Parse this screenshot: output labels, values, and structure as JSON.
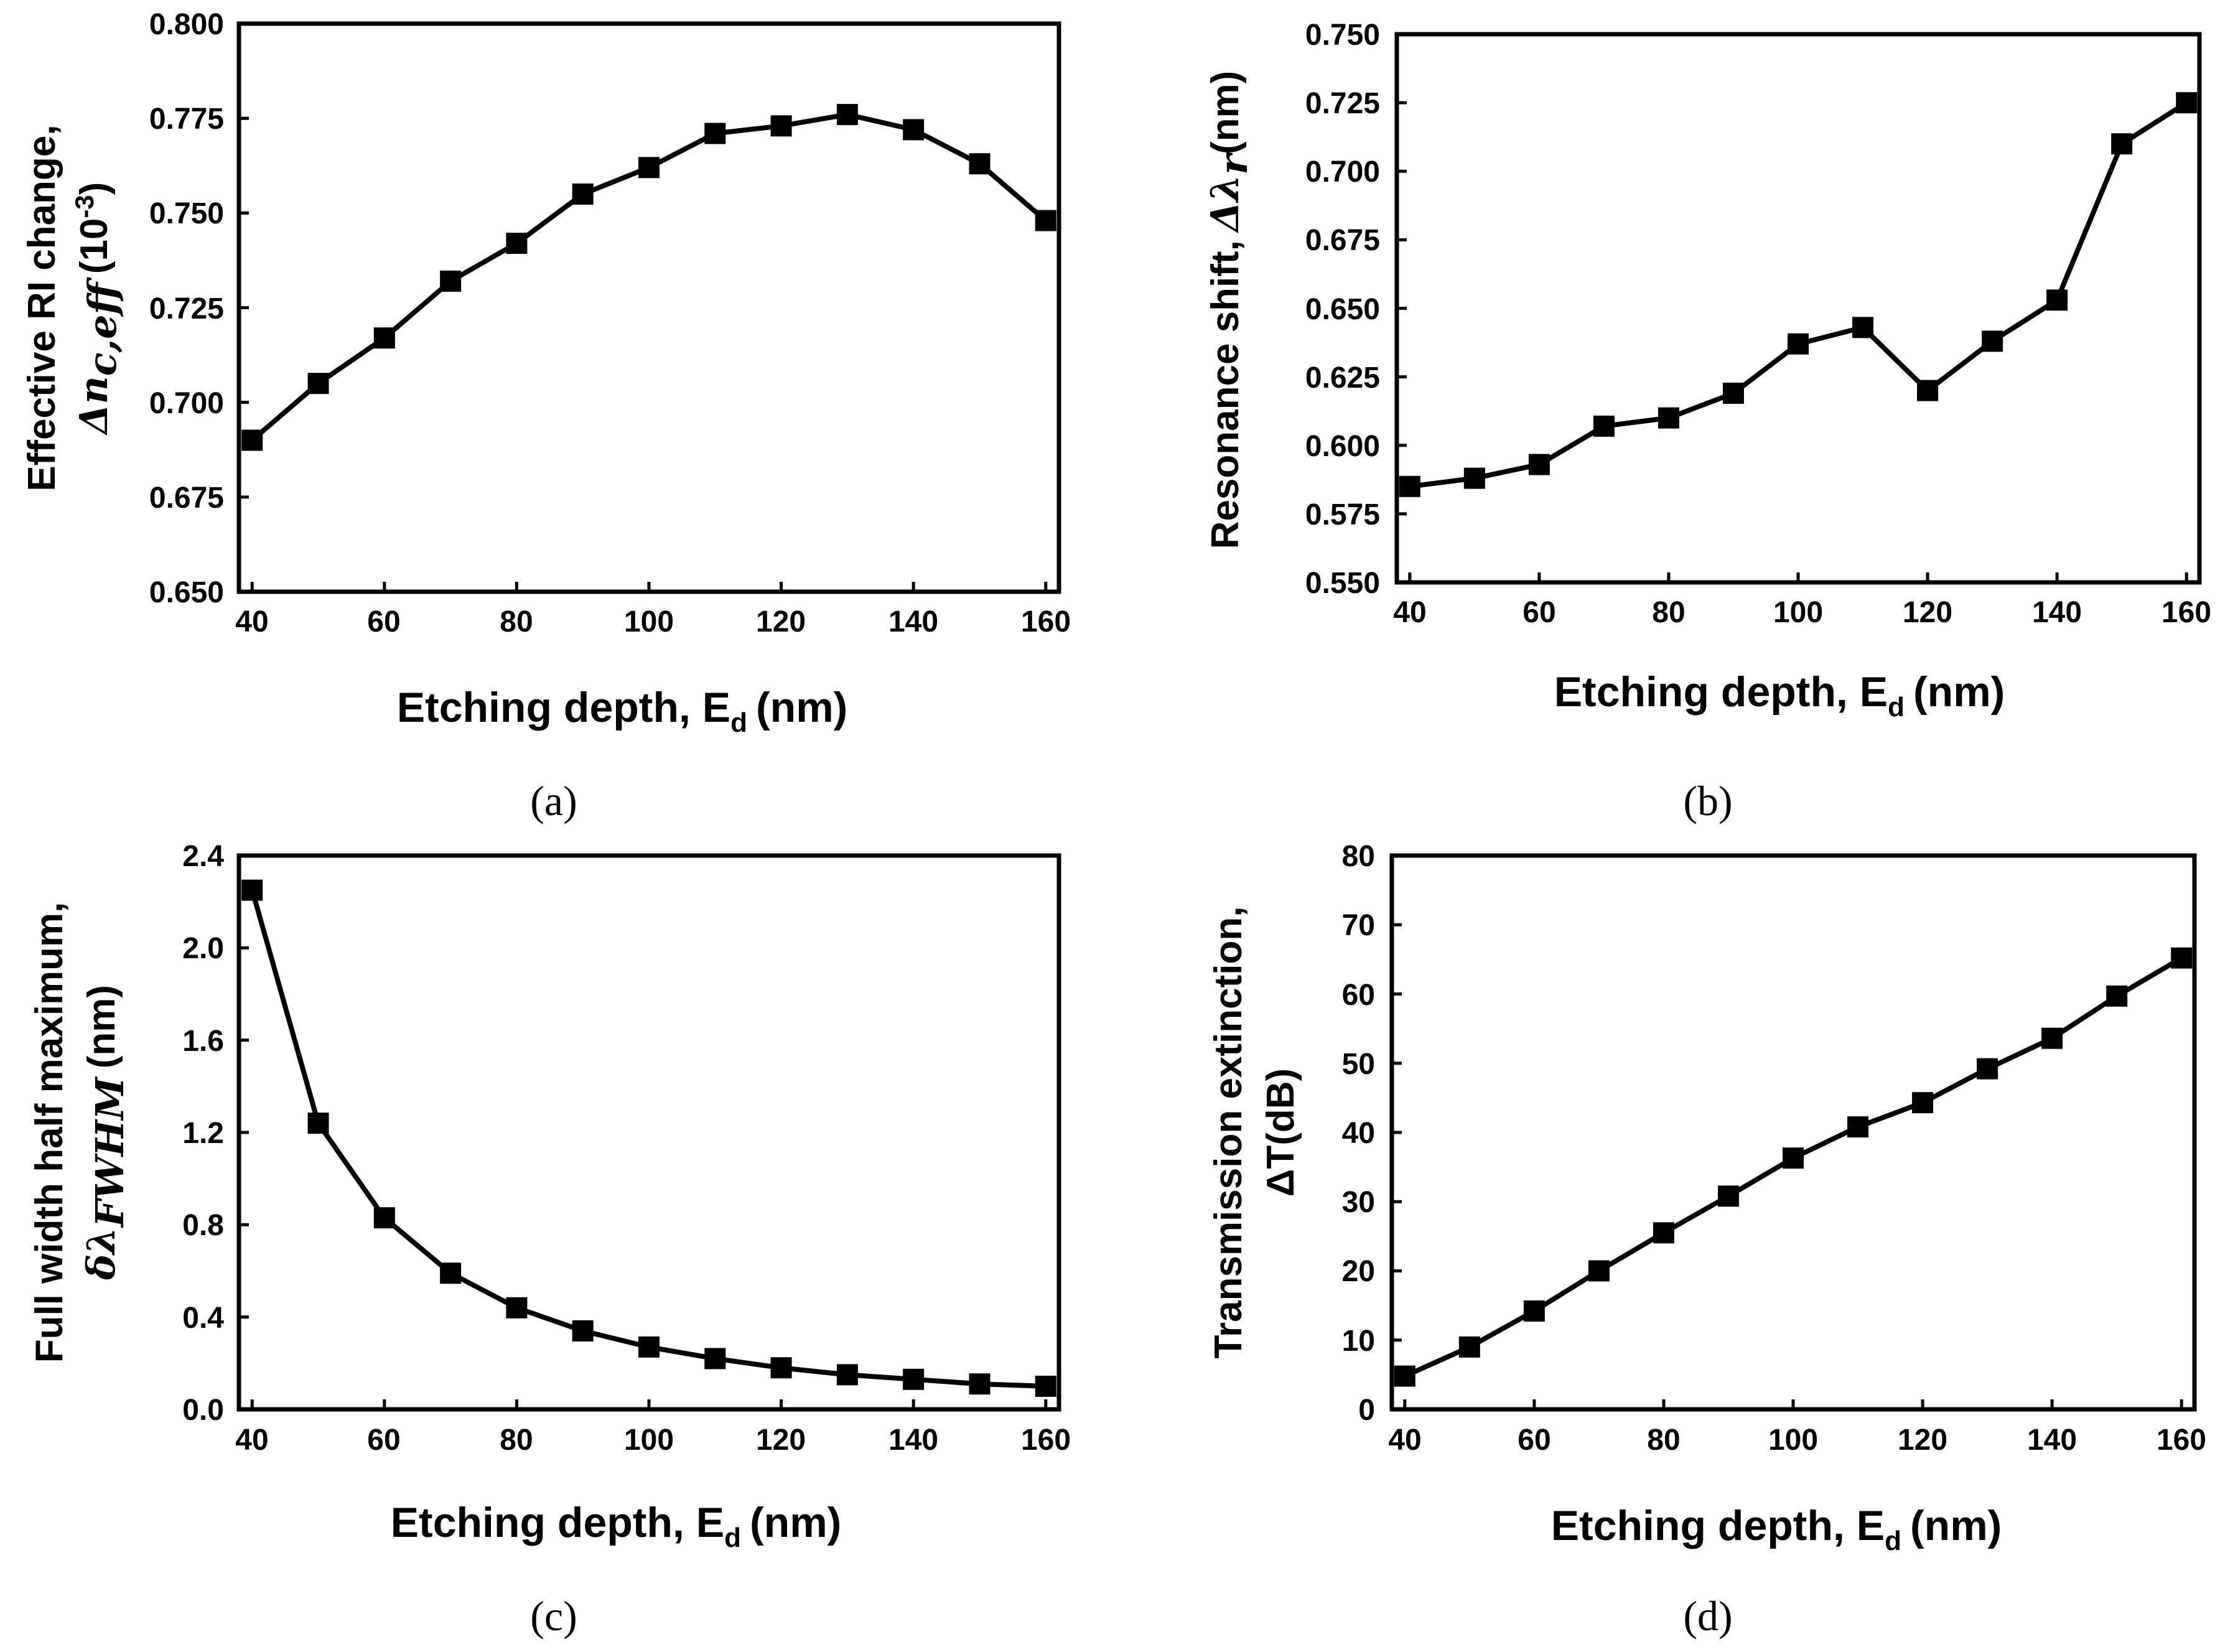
{
  "chart_data": [
    {
      "id": "a",
      "type": "line",
      "caption": "(a)",
      "xlabel": "Etching depth, E",
      "xlabel_sub": "d",
      "xlabel_unit": "(nm)",
      "ylabel_line1": "Effective RI change,",
      "ylabel_symbol": "Δn",
      "ylabel_symbol_sub": "c,eff",
      "ylabel_unit": "(10",
      "ylabel_unit_sup": "-3",
      "ylabel_unit_close": ")",
      "xlim": [
        38,
        162
      ],
      "ylim": [
        0.65,
        0.8
      ],
      "xticks": [
        "40",
        "60",
        "80",
        "100",
        "120",
        "140",
        "160"
      ],
      "yticks": [
        "0.650",
        "0.675",
        "0.700",
        "0.725",
        "0.750",
        "0.775",
        "0.800"
      ],
      "x": [
        40,
        50,
        60,
        70,
        80,
        90,
        100,
        110,
        120,
        130,
        140,
        150,
        160
      ],
      "values": [
        0.69,
        0.705,
        0.717,
        0.732,
        0.742,
        0.755,
        0.762,
        0.771,
        0.773,
        0.776,
        0.772,
        0.763,
        0.748
      ]
    },
    {
      "id": "b",
      "type": "line",
      "caption": "(b)",
      "xlabel": "Etching depth, E",
      "xlabel_sub": "d",
      "xlabel_unit": "(nm)",
      "ylabel_line1": "Resonance shift,",
      "ylabel_symbol": "Δλ",
      "ylabel_symbol_sub": "r",
      "ylabel_unit": "(nm)",
      "xlim": [
        38,
        162
      ],
      "ylim": [
        0.55,
        0.75
      ],
      "xticks": [
        "40",
        "60",
        "80",
        "100",
        "120",
        "140",
        "160"
      ],
      "yticks": [
        "0.550",
        "0.575",
        "0.600",
        "0.625",
        "0.650",
        "0.675",
        "0.700",
        "0.725",
        "0.750"
      ],
      "x": [
        40,
        50,
        60,
        70,
        80,
        90,
        100,
        110,
        120,
        130,
        140,
        150,
        160
      ],
      "values": [
        0.585,
        0.588,
        0.593,
        0.607,
        0.61,
        0.619,
        0.637,
        0.643,
        0.62,
        0.638,
        0.653,
        0.71,
        0.725
      ]
    },
    {
      "id": "c",
      "type": "line",
      "caption": "(c)",
      "xlabel": "Etching depth, E",
      "xlabel_sub": "d",
      "xlabel_unit": "(nm)",
      "ylabel_line1": "Full width half maximum,",
      "ylabel_symbol": "δλ",
      "ylabel_symbol_sub": "FWHM",
      "ylabel_unit": "(nm)",
      "xlim": [
        38,
        162
      ],
      "ylim": [
        0.0,
        2.4
      ],
      "xticks": [
        "40",
        "60",
        "80",
        "100",
        "120",
        "140",
        "160"
      ],
      "yticks": [
        "0.0",
        "0.4",
        "0.8",
        "1.2",
        "1.6",
        "2.0",
        "2.4"
      ],
      "x": [
        40,
        50,
        60,
        70,
        80,
        90,
        100,
        110,
        120,
        130,
        140,
        150,
        160
      ],
      "values": [
        2.25,
        1.24,
        0.83,
        0.59,
        0.44,
        0.34,
        0.27,
        0.22,
        0.18,
        0.15,
        0.13,
        0.11,
        0.1
      ]
    },
    {
      "id": "d",
      "type": "line",
      "caption": "(d)",
      "xlabel": "Etching depth, E",
      "xlabel_sub": "d",
      "xlabel_unit": "(nm)",
      "ylabel_line1": "Transmission extinction,",
      "ylabel_line2": "ΔT(dB)",
      "xlim": [
        38,
        162
      ],
      "ylim": [
        0,
        80
      ],
      "xticks": [
        "40",
        "60",
        "80",
        "100",
        "120",
        "140",
        "160"
      ],
      "yticks": [
        "0",
        "10",
        "20",
        "30",
        "40",
        "50",
        "60",
        "70",
        "80"
      ],
      "x": [
        40,
        50,
        60,
        70,
        80,
        90,
        100,
        110,
        120,
        130,
        140,
        150,
        160
      ],
      "values": [
        4.8,
        9.0,
        14.2,
        20.0,
        25.5,
        30.8,
        36.3,
        40.8,
        44.3,
        49.2,
        53.6,
        59.7,
        65.2
      ]
    }
  ]
}
